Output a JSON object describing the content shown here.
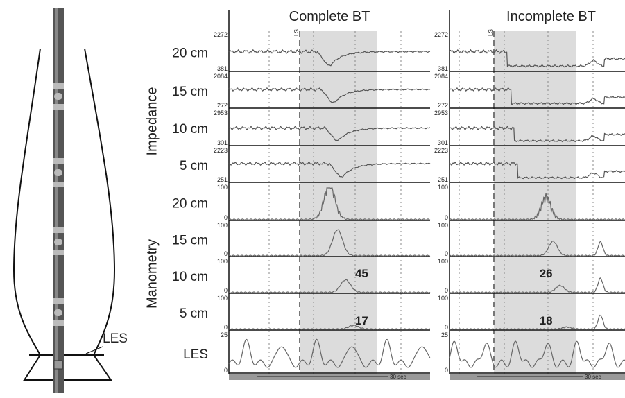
{
  "diagram": {
    "les_label": "LES"
  },
  "groups": {
    "impedance": "Impedance",
    "manometry": "Manometry"
  },
  "rows": [
    {
      "label": "20 cm",
      "top": "2272",
      "bottom": "381"
    },
    {
      "label": "15 cm",
      "top": "2084",
      "bottom": "272"
    },
    {
      "label": "10 cm",
      "top": "2953",
      "bottom": "301"
    },
    {
      "label": "5 cm",
      "top": "2223",
      "bottom": "251"
    },
    {
      "label": "20 cm",
      "top": "100",
      "bottom": "0"
    },
    {
      "label": "15 cm",
      "top": "100",
      "bottom": "0"
    },
    {
      "label": "10 cm",
      "top": "100",
      "bottom": "0"
    },
    {
      "label": "5 cm",
      "top": "100",
      "bottom": "0"
    },
    {
      "label": "LES",
      "top": "25",
      "bottom": "0"
    }
  ],
  "panels": [
    {
      "title": "Complete BT",
      "marker": "LS",
      "scale": "30 sec",
      "annotations": [
        "45",
        "17"
      ]
    },
    {
      "title": "Incomplete BT",
      "marker": "LS",
      "scale": "30 sec",
      "annotations": [
        "26",
        "18"
      ]
    }
  ]
}
